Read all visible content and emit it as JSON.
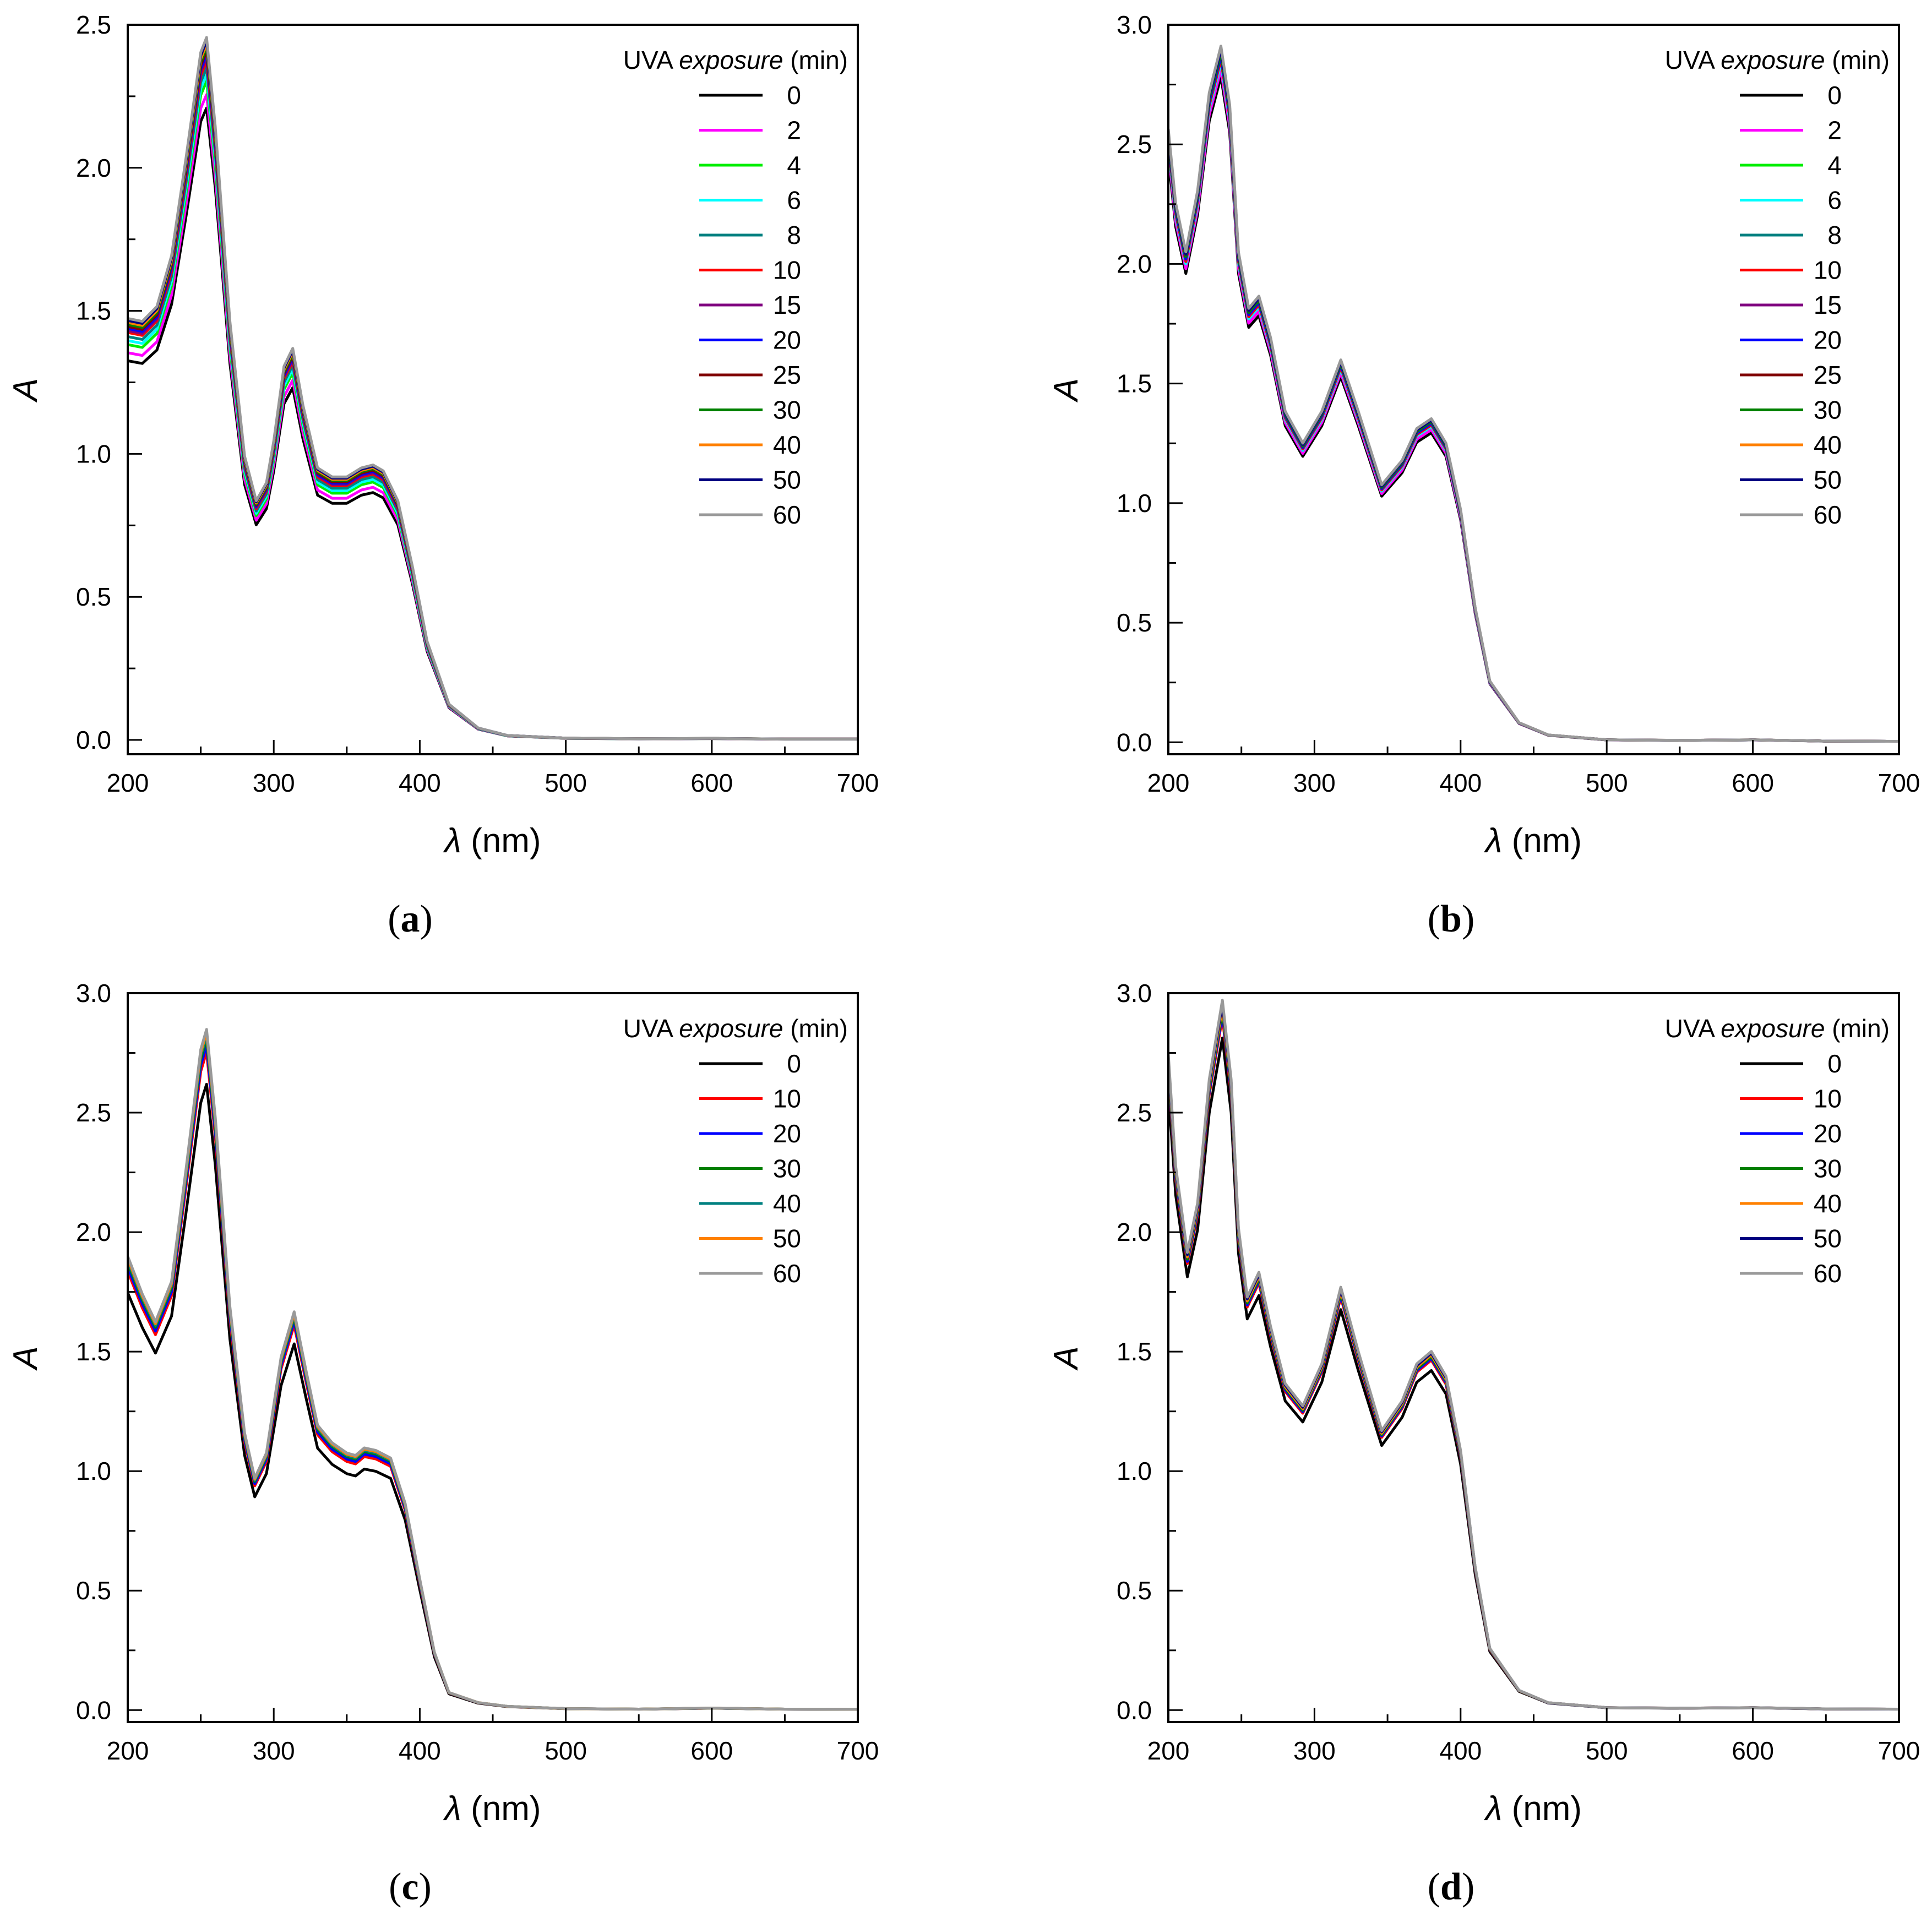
{
  "chart_data": [
    {
      "panel": "a",
      "type": "line",
      "panel_label": "a",
      "xlabel_symbol": "λ",
      "xlabel_unit": " (nm)",
      "ylabel": "A",
      "xlim": [
        200,
        700
      ],
      "ylim": [
        -0.05,
        2.5
      ],
      "x_ticks": [
        200,
        300,
        400,
        500,
        600,
        700
      ],
      "x_tick_labels": [
        "200",
        "300",
        "400",
        "500",
        "600",
        "700"
      ],
      "y_ticks": [
        0.0,
        0.5,
        1.0,
        1.5,
        2.0,
        2.5
      ],
      "y_tick_labels": [
        "0.0",
        "0.5",
        "1.0",
        "1.5",
        "2.0",
        "2.5"
      ],
      "legend_title_main": "UVA ",
      "legend_title_italic": "exposure",
      "legend_title_unit": " (min)",
      "legend_position": "top-right",
      "spectrum_x": [
        200,
        210,
        220,
        230,
        240,
        250,
        254,
        260,
        270,
        280,
        288,
        295,
        300,
        307,
        313,
        320,
        330,
        340,
        350,
        360,
        368,
        375,
        385,
        395,
        405,
        420,
        440,
        460,
        500,
        550,
        600,
        650,
        700
      ],
      "base_y": [
        1.41,
        1.4,
        1.45,
        1.62,
        1.95,
        2.3,
        2.35,
        2.05,
        1.4,
        0.95,
        0.8,
        0.86,
        1.0,
        1.25,
        1.31,
        1.12,
        0.91,
        0.88,
        0.88,
        0.91,
        0.92,
        0.9,
        0.8,
        0.58,
        0.33,
        0.12,
        0.04,
        0.015,
        0.006,
        0.004,
        0.005,
        0.003,
        0.003
      ],
      "series": [
        {
          "name": "0",
          "color": "#000000",
          "shift": -0.06
        },
        {
          "name": "2",
          "color": "#ff00ff",
          "shift": -0.04
        },
        {
          "name": "4",
          "color": "#00ee00",
          "shift": -0.02
        },
        {
          "name": "6",
          "color": "#00ffff",
          "shift": -0.01
        },
        {
          "name": "8",
          "color": "#008080",
          "shift": 0.0
        },
        {
          "name": "10",
          "color": "#ff0000",
          "shift": 0.01
        },
        {
          "name": "15",
          "color": "#800080",
          "shift": 0.015
        },
        {
          "name": "20",
          "color": "#0000ff",
          "shift": 0.02
        },
        {
          "name": "25",
          "color": "#800000",
          "shift": 0.025
        },
        {
          "name": "30",
          "color": "#008000",
          "shift": 0.03
        },
        {
          "name": "40",
          "color": "#ff8000",
          "shift": 0.035
        },
        {
          "name": "50",
          "color": "#000080",
          "shift": 0.04
        },
        {
          "name": "60",
          "color": "#999999",
          "shift": 0.045
        }
      ]
    },
    {
      "panel": "b",
      "type": "line",
      "panel_label": "b",
      "xlabel_symbol": "λ",
      "xlabel_unit": " (nm)",
      "ylabel": "A",
      "xlim": [
        200,
        700
      ],
      "ylim": [
        -0.05,
        3.0
      ],
      "x_ticks": [
        200,
        300,
        400,
        500,
        600,
        700
      ],
      "x_tick_labels": [
        "200",
        "300",
        "400",
        "500",
        "600",
        "700"
      ],
      "y_ticks": [
        0.0,
        0.5,
        1.0,
        1.5,
        2.0,
        2.5,
        3.0
      ],
      "y_tick_labels": [
        "0.0",
        "0.5",
        "1.0",
        "1.5",
        "2.0",
        "2.5",
        "3.0"
      ],
      "legend_title_main": "UVA ",
      "legend_title_italic": "exposure",
      "legend_title_unit": " (min)",
      "legend_position": "top-right",
      "spectrum_x": [
        200,
        205,
        212,
        220,
        228,
        236,
        242,
        248,
        255,
        262,
        270,
        280,
        292,
        305,
        318,
        330,
        346,
        360,
        370,
        380,
        390,
        400,
        410,
        420,
        440,
        460,
        500,
        550,
        600,
        650,
        700
      ],
      "base_y": [
        2.5,
        2.2,
        2.0,
        2.25,
        2.65,
        2.84,
        2.6,
        2.0,
        1.77,
        1.82,
        1.65,
        1.35,
        1.22,
        1.35,
        1.56,
        1.35,
        1.05,
        1.15,
        1.28,
        1.32,
        1.22,
        0.95,
        0.55,
        0.25,
        0.08,
        0.03,
        0.01,
        0.008,
        0.01,
        0.005,
        0.004
      ],
      "series": [
        {
          "name": "0",
          "color": "#000000",
          "shift": -0.02
        },
        {
          "name": "2",
          "color": "#ff00ff",
          "shift": -0.01
        },
        {
          "name": "4",
          "color": "#00ee00",
          "shift": 0.0
        },
        {
          "name": "6",
          "color": "#00ffff",
          "shift": 0.0
        },
        {
          "name": "8",
          "color": "#008080",
          "shift": 0.005
        },
        {
          "name": "10",
          "color": "#ff0000",
          "shift": 0.005
        },
        {
          "name": "15",
          "color": "#800080",
          "shift": 0.01
        },
        {
          "name": "20",
          "color": "#0000ff",
          "shift": 0.01
        },
        {
          "name": "25",
          "color": "#800000",
          "shift": 0.015
        },
        {
          "name": "30",
          "color": "#008000",
          "shift": 0.015
        },
        {
          "name": "40",
          "color": "#ff8000",
          "shift": 0.02
        },
        {
          "name": "50",
          "color": "#000080",
          "shift": 0.02
        },
        {
          "name": "60",
          "color": "#999999",
          "shift": 0.025
        }
      ]
    },
    {
      "panel": "c",
      "type": "line",
      "panel_label": "c",
      "xlabel_symbol": "λ",
      "xlabel_unit": " (nm)",
      "ylabel": "A",
      "xlim": [
        200,
        700
      ],
      "ylim": [
        -0.05,
        3.0
      ],
      "x_ticks": [
        200,
        300,
        400,
        500,
        600,
        700
      ],
      "x_tick_labels": [
        "200",
        "300",
        "400",
        "500",
        "600",
        "700"
      ],
      "y_ticks": [
        0.0,
        0.5,
        1.0,
        1.5,
        2.0,
        2.5,
        3.0
      ],
      "y_tick_labels": [
        "0.0",
        "0.5",
        "1.0",
        "1.5",
        "2.0",
        "2.5",
        "3.0"
      ],
      "legend_title_main": "UVA ",
      "legend_title_italic": "exposure",
      "legend_title_unit": " (min)",
      "legend_position": "top-right",
      "spectrum_x": [
        200,
        210,
        219,
        230,
        240,
        250,
        254,
        260,
        270,
        280,
        287,
        295,
        305,
        314,
        322,
        330,
        340,
        350,
        356,
        362,
        370,
        380,
        390,
        400,
        410,
        420,
        440,
        460,
        500,
        550,
        600,
        650,
        700
      ],
      "base_y": [
        1.8,
        1.65,
        1.54,
        1.7,
        2.15,
        2.62,
        2.7,
        2.35,
        1.6,
        1.1,
        0.92,
        1.02,
        1.4,
        1.58,
        1.35,
        1.13,
        1.06,
        1.02,
        1.01,
        1.04,
        1.03,
        1.0,
        0.82,
        0.52,
        0.23,
        0.07,
        0.03,
        0.015,
        0.006,
        0.004,
        0.008,
        0.004,
        0.003
      ],
      "series": [
        {
          "name": "0",
          "color": "#000000",
          "shift": -0.03
        },
        {
          "name": "10",
          "color": "#ff0000",
          "shift": 0.02
        },
        {
          "name": "20",
          "color": "#0000ff",
          "shift": 0.03
        },
        {
          "name": "30",
          "color": "#008000",
          "shift": 0.04
        },
        {
          "name": "40",
          "color": "#008080",
          "shift": 0.045
        },
        {
          "name": "50",
          "color": "#ff8000",
          "shift": 0.05
        },
        {
          "name": "60",
          "color": "#999999",
          "shift": 0.055
        }
      ]
    },
    {
      "panel": "d",
      "type": "line",
      "panel_label": "d",
      "xlabel_symbol": "λ",
      "xlabel_unit": " (nm)",
      "ylabel": "A",
      "xlim": [
        200,
        700
      ],
      "ylim": [
        -0.05,
        3.0
      ],
      "x_ticks": [
        200,
        300,
        400,
        500,
        600,
        700
      ],
      "x_tick_labels": [
        "200",
        "300",
        "400",
        "500",
        "600",
        "700"
      ],
      "y_ticks": [
        0.0,
        0.5,
        1.0,
        1.5,
        2.0,
        2.5,
        3.0
      ],
      "y_tick_labels": [
        "0.0",
        "0.5",
        "1.0",
        "1.5",
        "2.0",
        "2.5",
        "3.0"
      ],
      "legend_title_main": "UVA ",
      "legend_title_italic": "exposure",
      "legend_title_unit": " (min)",
      "legend_position": "top-right",
      "spectrum_x": [
        200,
        205,
        213,
        220,
        228,
        237,
        243,
        248,
        254,
        262,
        270,
        280,
        292,
        305,
        318,
        330,
        346,
        360,
        370,
        380,
        390,
        400,
        410,
        420,
        440,
        460,
        500,
        550,
        600,
        650,
        700
      ],
      "base_y": [
        2.65,
        2.2,
        1.85,
        2.05,
        2.55,
        2.87,
        2.55,
        1.95,
        1.67,
        1.77,
        1.55,
        1.32,
        1.23,
        1.4,
        1.71,
        1.45,
        1.13,
        1.25,
        1.4,
        1.45,
        1.35,
        1.05,
        0.58,
        0.25,
        0.08,
        0.03,
        0.01,
        0.008,
        0.01,
        0.005,
        0.004
      ],
      "series": [
        {
          "name": "0",
          "color": "#000000",
          "shift": -0.02
        },
        {
          "name": "10",
          "color": "#ff0000",
          "shift": 0.01
        },
        {
          "name": "20",
          "color": "#0000ff",
          "shift": 0.015
        },
        {
          "name": "30",
          "color": "#008000",
          "shift": 0.02
        },
        {
          "name": "40",
          "color": "#ff8000",
          "shift": 0.025
        },
        {
          "name": "50",
          "color": "#000080",
          "shift": 0.03
        },
        {
          "name": "60",
          "color": "#999999",
          "shift": 0.035
        }
      ]
    }
  ]
}
